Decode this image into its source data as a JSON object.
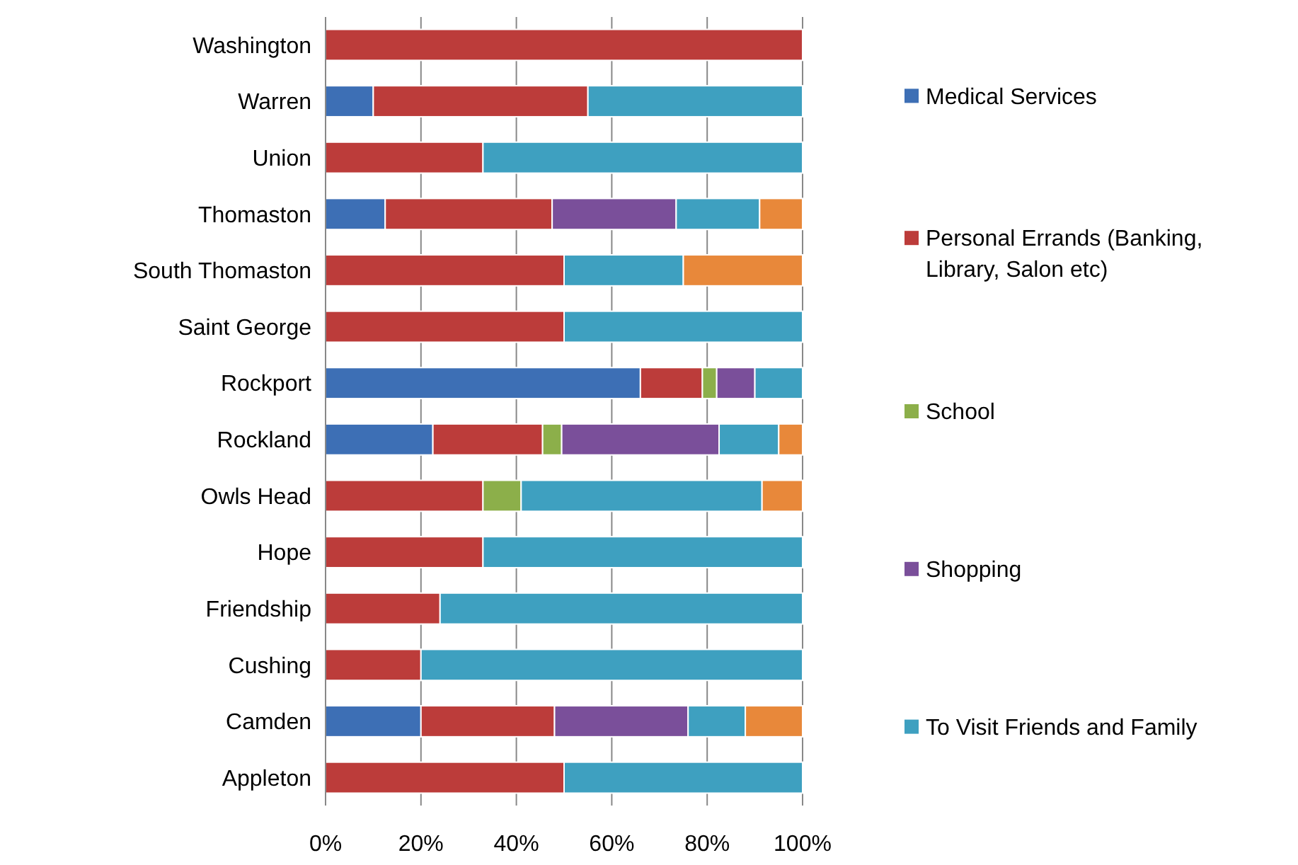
{
  "chart_data": {
    "type": "bar",
    "orientation": "horizontal",
    "stacked": true,
    "categories": [
      "Washington",
      "Warren",
      "Union",
      "Thomaston",
      "South Thomaston",
      "Saint George",
      "Rockport",
      "Rockland",
      "Owls Head",
      "Hope",
      "Friendship",
      "Cushing",
      "Camden",
      "Appleton"
    ],
    "series": [
      {
        "name": "Medical Services",
        "color": "#3d6fb5",
        "values": [
          null,
          10,
          null,
          12.5,
          null,
          null,
          66,
          22.5,
          null,
          null,
          null,
          null,
          20,
          null
        ]
      },
      {
        "name": "Personal Errands (Banking, Library, Salon etc)",
        "color": "#bc3c3a",
        "values": [
          100,
          45,
          33,
          35,
          50,
          50,
          13,
          23,
          33,
          33,
          24,
          20,
          28,
          50
        ]
      },
      {
        "name": "School",
        "color": "#8caf4a",
        "values": [
          null,
          null,
          null,
          null,
          null,
          null,
          3,
          4,
          8,
          null,
          null,
          null,
          null,
          null
        ]
      },
      {
        "name": "Shopping",
        "color": "#7a4f9a",
        "values": [
          null,
          null,
          null,
          26,
          null,
          null,
          8,
          33,
          null,
          null,
          null,
          null,
          28,
          null
        ]
      },
      {
        "name": "To Visit Friends and Family",
        "color": "#3ea0c0",
        "values": [
          null,
          45,
          67,
          17.5,
          25,
          50,
          10,
          12.5,
          50.5,
          67,
          76,
          80,
          12,
          50
        ]
      },
      {
        "color": "#e8883a",
        "values": [
          null,
          null,
          null,
          9,
          25,
          null,
          null,
          5,
          8.5,
          null,
          null,
          null,
          12,
          null
        ]
      }
    ],
    "xlim": [
      0,
      100
    ],
    "xticks": [
      {
        "value": 0,
        "label": "0%"
      },
      {
        "value": 20,
        "label": "20%"
      },
      {
        "value": 40,
        "label": "40%"
      },
      {
        "value": 60,
        "label": "60%"
      },
      {
        "value": 80,
        "label": "80%"
      },
      {
        "value": 100,
        "label": "100%"
      }
    ],
    "grid": "x",
    "legend": "right"
  }
}
